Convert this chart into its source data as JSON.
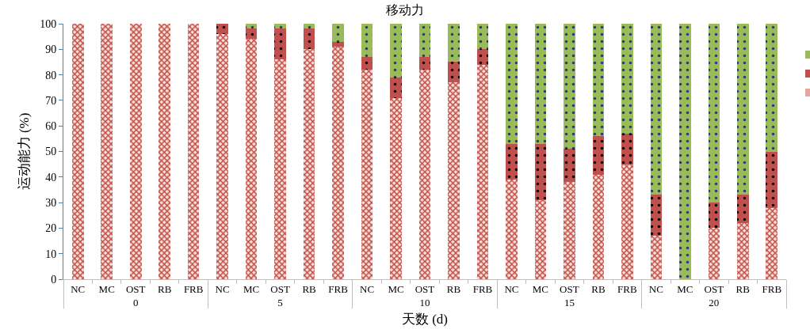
{
  "chart_data": {
    "type": "bar",
    "title": "移动力",
    "xlabel": "天数 (d)",
    "ylabel": "运动能力 (%)",
    "categories": [
      "NC",
      "MC",
      "OST",
      "RB",
      "FRB",
      "NC",
      "MC",
      "OST",
      "RB",
      "FRB",
      "NC",
      "MC",
      "OST",
      "RB",
      "FRB",
      "NC",
      "MC",
      "OST",
      "RB",
      "FRB",
      "NC",
      "MC",
      "OST",
      "RB",
      "FRB"
    ],
    "annotations": [
      "0",
      "5",
      "10",
      "15",
      "20"
    ],
    "stacked": true,
    "ylim": [
      0,
      100
    ],
    "yticks": [
      0,
      10,
      20,
      30,
      40,
      50,
      60,
      70,
      80,
      90,
      100
    ],
    "grid": false,
    "series": [
      {
        "color": "#e6a5a0",
        "values": [
          100,
          100,
          100,
          100,
          100,
          96,
          94,
          86,
          90,
          91,
          82,
          71,
          82,
          77,
          84,
          39,
          31,
          38,
          41,
          45,
          17,
          0,
          20,
          22,
          28
        ]
      },
      {
        "color": "#c0504d",
        "values": [
          0,
          0,
          0,
          0,
          0,
          4,
          4,
          12,
          8,
          2,
          5,
          8,
          5,
          8,
          6,
          14,
          22,
          13,
          15,
          12,
          16,
          0,
          10,
          11,
          22
        ]
      },
      {
        "color": "#9bbb59",
        "values": [
          0,
          0,
          0,
          0,
          0,
          0,
          2,
          2,
          2,
          7,
          13,
          21,
          13,
          15,
          10,
          47,
          47,
          49,
          44,
          43,
          67,
          100,
          70,
          67,
          50
        ]
      }
    ]
  }
}
